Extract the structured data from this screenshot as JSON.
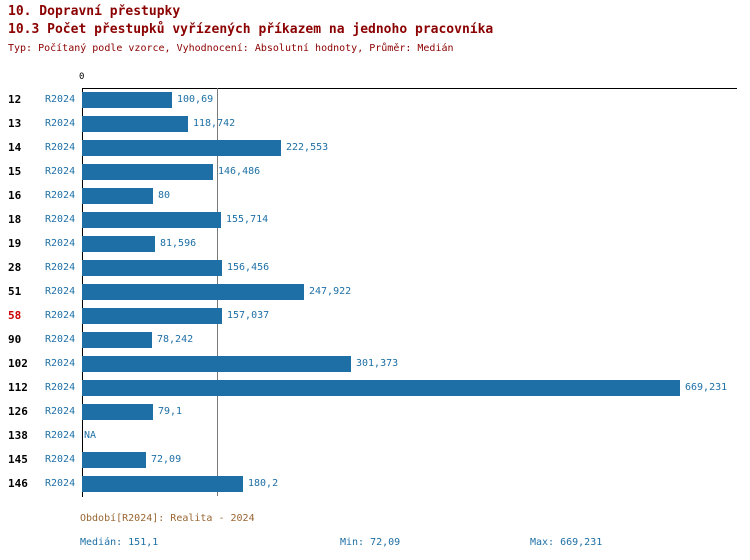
{
  "chart_data": {
    "type": "bar",
    "orientation": "horizontal",
    "title": "10. Dopravní přestupky",
    "subtitle": "10.3 Počet přestupků vyřízených příkazem na jednoho pracovníka",
    "meta": "Typ: Počítaný podle vzorce, Vyhodnocení: Absolutní hodnoty, Průměr: Medián",
    "x_zero_label": "0",
    "series_name": "R2024",
    "median_value": 151.1,
    "x_max_value": 669.231,
    "grid": false,
    "rows": [
      {
        "id": "12",
        "series": "R2024",
        "value": 100.69,
        "label": "100,69",
        "highlight": false
      },
      {
        "id": "13",
        "series": "R2024",
        "value": 118.742,
        "label": "118,742",
        "highlight": false
      },
      {
        "id": "14",
        "series": "R2024",
        "value": 222.553,
        "label": "222,553",
        "highlight": false
      },
      {
        "id": "15",
        "series": "R2024",
        "value": 146.486,
        "label": "146,486",
        "highlight": false
      },
      {
        "id": "16",
        "series": "R2024",
        "value": 80,
        "label": "80",
        "highlight": false
      },
      {
        "id": "18",
        "series": "R2024",
        "value": 155.714,
        "label": "155,714",
        "highlight": false
      },
      {
        "id": "19",
        "series": "R2024",
        "value": 81.596,
        "label": "81,596",
        "highlight": false
      },
      {
        "id": "28",
        "series": "R2024",
        "value": 156.456,
        "label": "156,456",
        "highlight": false
      },
      {
        "id": "51",
        "series": "R2024",
        "value": 247.922,
        "label": "247,922",
        "highlight": false
      },
      {
        "id": "58",
        "series": "R2024",
        "value": 157.037,
        "label": "157,037",
        "highlight": true
      },
      {
        "id": "90",
        "series": "R2024",
        "value": 78.242,
        "label": "78,242",
        "highlight": false
      },
      {
        "id": "102",
        "series": "R2024",
        "value": 301.373,
        "label": "301,373",
        "highlight": false
      },
      {
        "id": "112",
        "series": "R2024",
        "value": 669.231,
        "label": "669,231",
        "highlight": false
      },
      {
        "id": "126",
        "series": "R2024",
        "value": 79.1,
        "label": "79,1",
        "highlight": false
      },
      {
        "id": "138",
        "series": "R2024",
        "value": null,
        "label": "NA",
        "highlight": false
      },
      {
        "id": "145",
        "series": "R2024",
        "value": 72.09,
        "label": "72,09",
        "highlight": false
      },
      {
        "id": "146",
        "series": "R2024",
        "value": 180.2,
        "label": "180,2",
        "highlight": false
      }
    ],
    "colors": {
      "bar": "#1d6fa5",
      "title": "#8b0000",
      "meta_text": "#8b0000",
      "row_id": "#000000",
      "row_id_highlight": "#cc0000",
      "value_text": "#1d6fa5",
      "median_line": "#7a7a7a",
      "axis": "#000000",
      "period_text": "#996633",
      "stats_text": "#1d6fa5"
    }
  },
  "footer": {
    "period": "Období[R2024]: Realita - 2024",
    "median": "Medián: 151,1",
    "min": "Min: 72,09",
    "max": "Max: 669,231"
  }
}
